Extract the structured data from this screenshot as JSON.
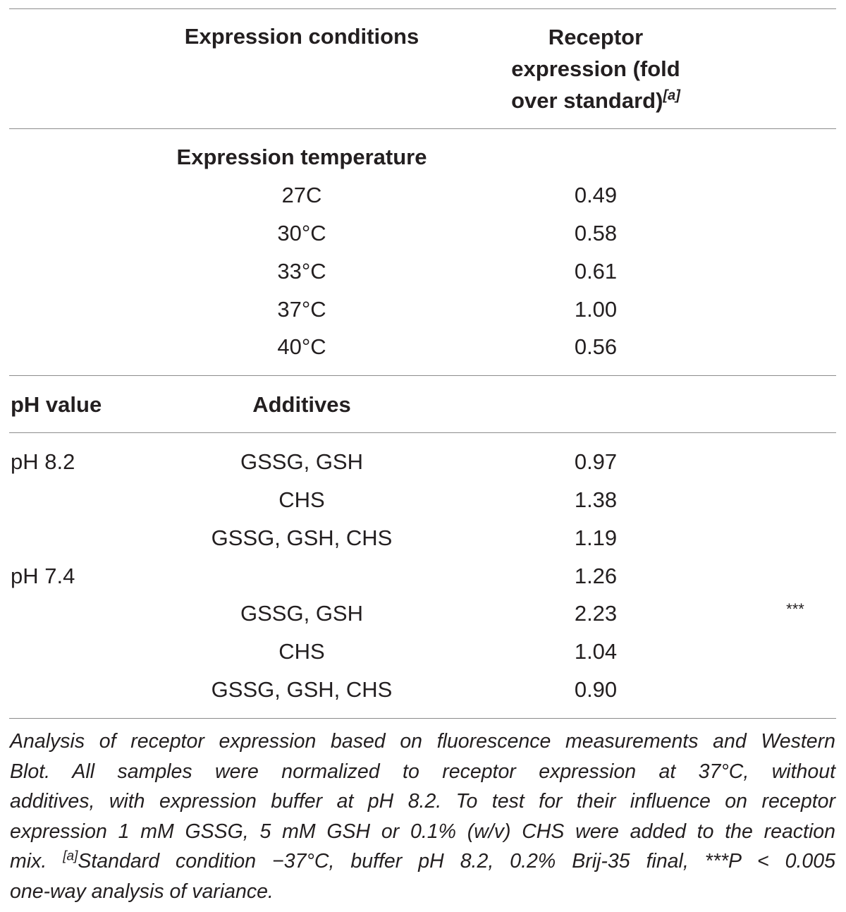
{
  "table": {
    "header": {
      "col_conditions": "Expression conditions",
      "col_expression_line1": "Receptor",
      "col_expression_line2": "expression (fold",
      "col_expression_line3": "over standard)",
      "col_expression_footnote": "[a]"
    },
    "temperature_section": {
      "title": "Expression temperature",
      "rows": [
        {
          "condition": "27C",
          "value": "0.49"
        },
        {
          "condition": "30°C",
          "value": "0.58"
        },
        {
          "condition": "33°C",
          "value": "0.61"
        },
        {
          "condition": "37°C",
          "value": "1.00"
        },
        {
          "condition": "40°C",
          "value": "0.56"
        }
      ]
    },
    "additives_section": {
      "col_ph": "pH value",
      "col_additives": "Additives",
      "rows": [
        {
          "ph": "pH 8.2",
          "additive": "GSSG, GSH",
          "value": "0.97",
          "sig": ""
        },
        {
          "ph": "",
          "additive": "CHS",
          "value": "1.38",
          "sig": ""
        },
        {
          "ph": "",
          "additive": "GSSG, GSH, CHS",
          "value": "1.19",
          "sig": ""
        },
        {
          "ph": "pH 7.4",
          "additive": "",
          "value": "1.26",
          "sig": ""
        },
        {
          "ph": "",
          "additive": "GSSG, GSH",
          "value": "2.23",
          "sig": "***"
        },
        {
          "ph": "",
          "additive": "CHS",
          "value": "1.04",
          "sig": ""
        },
        {
          "ph": "",
          "additive": "GSSG, GSH, CHS",
          "value": "0.90",
          "sig": ""
        }
      ]
    }
  },
  "caption": {
    "line1": "Analysis of receptor expression based on fluorescence measurements and Western",
    "line2": "Blot. All samples were normalized to receptor expression at 37°C, without",
    "line3": "additives, with expression buffer at pH 8.2. To test for their influence on receptor",
    "line4": "expression 1 mM GSSG, 5 mM GSH or 0.1% (w/v) CHS were added to the reaction",
    "line5_start": "mix. ",
    "line5_footnote": "[a]",
    "line5_rest": "Standard condition −37°C, buffer pH 8.2, 0.2% Brij-35 final, ***P < 0.005",
    "line6": "one-way analysis of variance."
  }
}
